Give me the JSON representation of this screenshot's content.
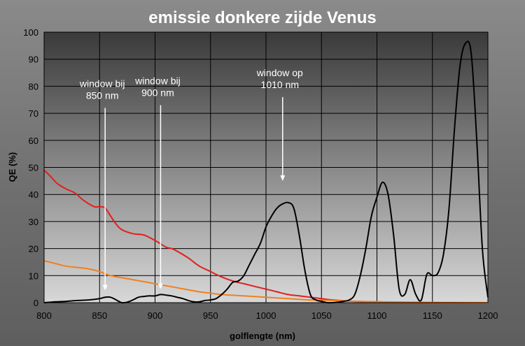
{
  "chart_data": {
    "type": "line",
    "title": "emissie donkere zijde Venus",
    "xlabel": "golflengte (nm)",
    "ylabel": "QE  (%)",
    "xlim": [
      800,
      1200
    ],
    "ylim": [
      0,
      100
    ],
    "xticks": [
      800,
      850,
      900,
      950,
      1000,
      1050,
      1100,
      1150,
      1200
    ],
    "yticks": [
      0,
      10,
      20,
      30,
      40,
      50,
      60,
      70,
      80,
      90,
      100
    ],
    "grid": true,
    "legend": "none",
    "colors": {
      "plot_top": "#3a3a3a",
      "plot_bottom": "#d8d8d8",
      "emission": "#000000",
      "red_curve": "#e02020",
      "orange_curve": "#f08020",
      "annotation": "#ffffff"
    },
    "series": [
      {
        "color": "#e02020",
        "x": [
          800,
          805,
          812,
          820,
          828,
          835,
          845,
          850,
          855,
          860,
          865,
          870,
          880,
          890,
          900,
          910,
          915,
          920,
          930,
          940,
          950,
          960,
          970,
          980,
          990,
          1000,
          1010,
          1020,
          1030,
          1040,
          1050,
          1060,
          1080,
          1100,
          1120,
          1150,
          1200
        ],
        "y": [
          49,
          47,
          44,
          42,
          40.5,
          38,
          35.5,
          35.5,
          35,
          32,
          29,
          27,
          25.5,
          25,
          23,
          20.5,
          20,
          19,
          16.5,
          13.5,
          11.5,
          9.5,
          8,
          7,
          6,
          5,
          4,
          3,
          2.5,
          2,
          1.5,
          1,
          0.5,
          0.3,
          0.1,
          0,
          0
        ]
      },
      {
        "color": "#f08020",
        "x": [
          800,
          810,
          820,
          840,
          850,
          860,
          880,
          900,
          920,
          940,
          950,
          960,
          980,
          1000,
          1020,
          1040,
          1060,
          1080,
          1100,
          1150,
          1200
        ],
        "y": [
          15.5,
          14.5,
          13.5,
          12.5,
          11.5,
          10,
          8.5,
          7,
          5.5,
          4,
          3.5,
          3,
          2.5,
          2,
          1.5,
          1,
          0.8,
          0.5,
          0.3,
          0.1,
          0
        ]
      },
      {
        "color": "#000000",
        "x": [
          800,
          810,
          820,
          830,
          840,
          850,
          855,
          860,
          865,
          870,
          875,
          880,
          885,
          890,
          895,
          900,
          905,
          910,
          915,
          920,
          925,
          930,
          935,
          940,
          945,
          950,
          955,
          960,
          965,
          970,
          975,
          980,
          985,
          990,
          995,
          1000,
          1005,
          1010,
          1015,
          1020,
          1025,
          1030,
          1035,
          1040,
          1045,
          1050,
          1055,
          1060,
          1065,
          1070,
          1075,
          1080,
          1085,
          1090,
          1095,
          1100,
          1105,
          1110,
          1115,
          1120,
          1125,
          1130,
          1135,
          1140,
          1145,
          1150,
          1155,
          1160,
          1165,
          1170,
          1175,
          1180,
          1185,
          1190,
          1195,
          1200
        ],
        "y": [
          0,
          0.3,
          0.5,
          0.8,
          1,
          1.5,
          2,
          2,
          1,
          0,
          0.2,
          1,
          2,
          2.3,
          2.5,
          2.5,
          3,
          2.8,
          2.5,
          2,
          1.5,
          0.8,
          0.3,
          0.3,
          0.8,
          1,
          1.5,
          3,
          5,
          7.5,
          8,
          10,
          14,
          18,
          22,
          28,
          32,
          35,
          36.5,
          37,
          35,
          25,
          12,
          3,
          1,
          0.5,
          0,
          0,
          0.2,
          0.5,
          1,
          3,
          10,
          20,
          32,
          39,
          44.5,
          40,
          25,
          5,
          3,
          8.5,
          3,
          1,
          10.5,
          10,
          11,
          18,
          35,
          65,
          88,
          96,
          92,
          60,
          20,
          2
        ]
      }
    ],
    "annotations": [
      {
        "line1": "window bij",
        "line2": "850 nm",
        "x": 855,
        "y_top": 72,
        "y_bottom": 4.5
      },
      {
        "line1": "window bij",
        "line2": "900 nm",
        "x": 905,
        "y_top": 73,
        "y_bottom": 5
      },
      {
        "line1": "window op",
        "line2": "1010 nm",
        "x": 1015,
        "y_top": 76,
        "y_bottom": 45
      }
    ]
  }
}
